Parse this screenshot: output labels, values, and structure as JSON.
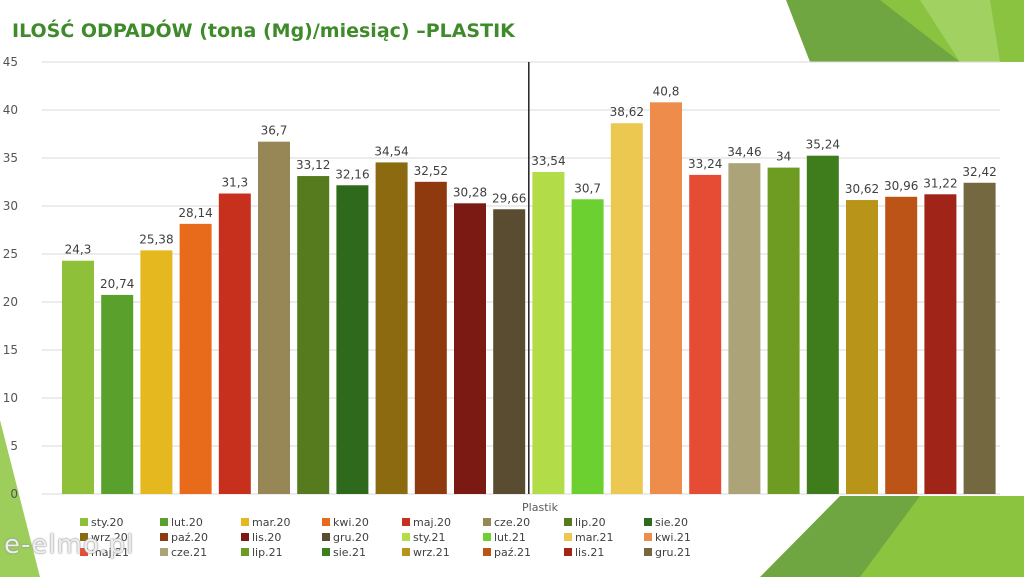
{
  "title": "ILOŚĆ ODPADÓW (tona (Mg)/miesiąc) –PLASTIK",
  "watermark": "e-elmo.pl",
  "colors": {
    "title": "#3f8a2a",
    "divider": "#222222",
    "grid": "#d9d9d9"
  },
  "chart_data": {
    "type": "bar",
    "title": "ILOŚĆ ODPADÓW (tona (Mg)/miesiąc) –PLASTIK",
    "xlabel": "Plastik",
    "ylabel": "",
    "ylim": [
      0,
      45
    ],
    "yticks": [
      0,
      5,
      10,
      15,
      20,
      25,
      30,
      35,
      40,
      45
    ],
    "grid": true,
    "legend_position": "bottom",
    "series": [
      {
        "name": "sty.20",
        "value": 24.3,
        "label": "24,3",
        "color": "#8fc03a"
      },
      {
        "name": "lut.20",
        "value": 20.74,
        "label": "20,74",
        "color": "#5aa02c"
      },
      {
        "name": "mar.20",
        "value": 25.38,
        "label": "25,38",
        "color": "#e6b820"
      },
      {
        "name": "kwi.20",
        "value": 28.14,
        "label": "28,14",
        "color": "#e86b1c"
      },
      {
        "name": "maj.20",
        "value": 31.3,
        "label": "31,3",
        "color": "#c8301e"
      },
      {
        "name": "cze.20",
        "value": 36.7,
        "label": "36,7",
        "color": "#988756"
      },
      {
        "name": "lip.20",
        "value": 33.12,
        "label": "33,12",
        "color": "#567a1e"
      },
      {
        "name": "sie.20",
        "value": 32.16,
        "label": "32,16",
        "color": "#2f6a1c"
      },
      {
        "name": "wrz.20",
        "value": 34.54,
        "label": "34,54",
        "color": "#8c6a10"
      },
      {
        "name": "paź.20",
        "value": 32.52,
        "label": "32,52",
        "color": "#8e3a0e"
      },
      {
        "name": "lis.20",
        "value": 30.28,
        "label": "30,28",
        "color": "#7a1a12"
      },
      {
        "name": "gru.20",
        "value": 29.66,
        "label": "29,66",
        "color": "#5a4c30"
      },
      {
        "name": "sty.21",
        "value": 33.54,
        "label": "33,54",
        "color": "#b2dc48"
      },
      {
        "name": "lut.21",
        "value": 30.7,
        "label": "30,7",
        "color": "#6cd030"
      },
      {
        "name": "mar.21",
        "value": 38.62,
        "label": "38,62",
        "color": "#ecc850"
      },
      {
        "name": "kwi.21",
        "value": 40.8,
        "label": "40,8",
        "color": "#ee8c4c"
      },
      {
        "name": "maj.21",
        "value": 33.24,
        "label": "33,24",
        "color": "#e64c34"
      },
      {
        "name": "cze.21",
        "value": 34.46,
        "label": "34,46",
        "color": "#aca478"
      },
      {
        "name": "lip.21",
        "value": 34.0,
        "label": "34",
        "color": "#6e9c22"
      },
      {
        "name": "sie.21",
        "value": 35.24,
        "label": "35,24",
        "color": "#3e7c1c"
      },
      {
        "name": "wrz.21",
        "value": 30.62,
        "label": "30,62",
        "color": "#b89418"
      },
      {
        "name": "paź.21",
        "value": 30.96,
        "label": "30,96",
        "color": "#bc5418"
      },
      {
        "name": "lis.21",
        "value": 31.22,
        "label": "31,22",
        "color": "#a02418"
      },
      {
        "name": "gru.21",
        "value": 32.42,
        "label": "32,42",
        "color": "#746840"
      }
    ]
  }
}
